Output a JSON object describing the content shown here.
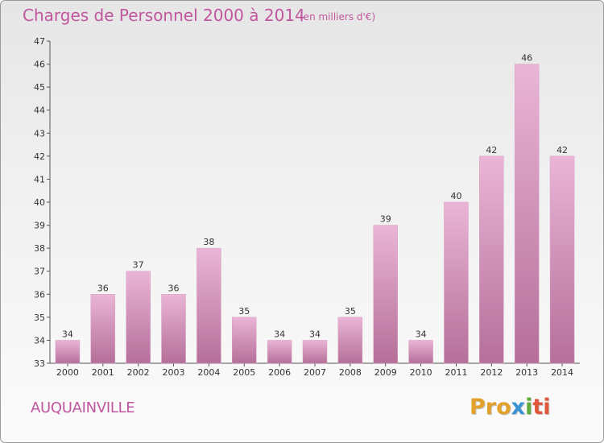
{
  "header": {
    "title": "Charges de Personnel 2000 à 2014",
    "subtitle": "(en milliers d'€)"
  },
  "footer": {
    "commune": "AUQUAINVILLE",
    "logo_parts": [
      "Pro",
      "x",
      "i",
      "ti"
    ]
  },
  "colors": {
    "accent": "#c0569d",
    "bar_light": "#eab5d6",
    "bar_dark": "#b56f99",
    "axis_text": "#333333"
  },
  "chart_data": {
    "type": "bar",
    "title": "Charges de Personnel 2000 à 2014",
    "subtitle": "(en milliers d'€)",
    "categories": [
      "2000",
      "2001",
      "2002",
      "2003",
      "2004",
      "2005",
      "2006",
      "2007",
      "2008",
      "2009",
      "2010",
      "2011",
      "2012",
      "2013",
      "2014"
    ],
    "values": [
      34,
      36,
      37,
      36,
      38,
      35,
      34,
      34,
      35,
      39,
      34,
      40,
      42,
      46,
      42
    ],
    "ylim": [
      33,
      47
    ],
    "yticks": [
      33,
      34,
      35,
      36,
      37,
      38,
      39,
      40,
      41,
      42,
      43,
      44,
      45,
      46,
      47
    ],
    "xlabel": "",
    "ylabel": "",
    "grid": false,
    "data_labels": true
  }
}
